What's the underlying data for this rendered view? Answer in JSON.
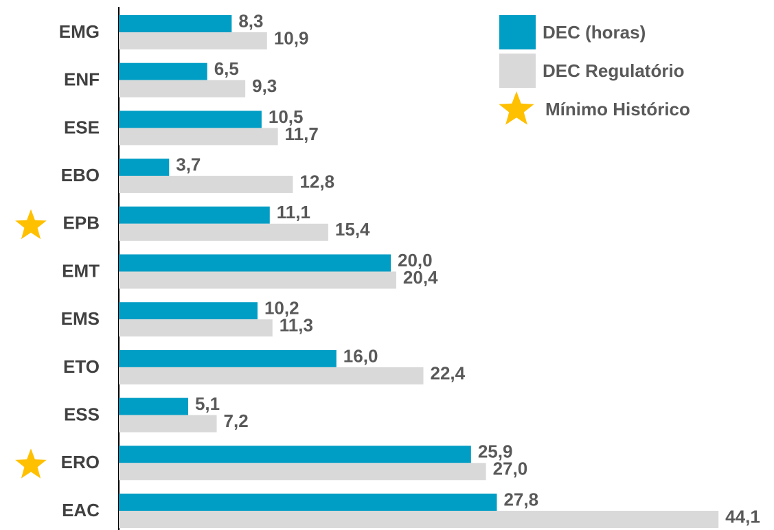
{
  "chart_data": {
    "type": "bar",
    "orientation": "horizontal",
    "categories": [
      "EMG",
      "ENF",
      "ESE",
      "EBO",
      "EPB",
      "EMT",
      "EMS",
      "ETO",
      "ESS",
      "ERO",
      "EAC"
    ],
    "series": [
      {
        "name": "DEC (horas)",
        "color": "#009dc4",
        "values": [
          8.3,
          6.5,
          10.5,
          3.7,
          11.1,
          20.0,
          10.2,
          16.0,
          5.1,
          25.9,
          27.8
        ],
        "value_labels": [
          "8,3",
          "6,5",
          "10,5",
          "3,7",
          "11,1",
          "20,0",
          "10,2",
          "16,0",
          "5,1",
          "25,9",
          "27,8"
        ]
      },
      {
        "name": "DEC Regulatório",
        "color": "#d9d9d9",
        "values": [
          10.9,
          9.3,
          11.7,
          12.8,
          15.4,
          20.4,
          11.3,
          22.4,
          7.2,
          27.0,
          44.1
        ],
        "value_labels": [
          "10,9",
          "9,3",
          "11,7",
          "12,8",
          "15,4",
          "20,4",
          "11,3",
          "22,4",
          "7,2",
          "27,0",
          "44,1"
        ]
      }
    ],
    "markers": {
      "name": "Mínimo Histórico",
      "color": "#ffc000",
      "flags": [
        false,
        false,
        false,
        false,
        true,
        false,
        false,
        false,
        false,
        true,
        false
      ]
    },
    "xlim": [
      0,
      45
    ],
    "legend": "top-right"
  }
}
